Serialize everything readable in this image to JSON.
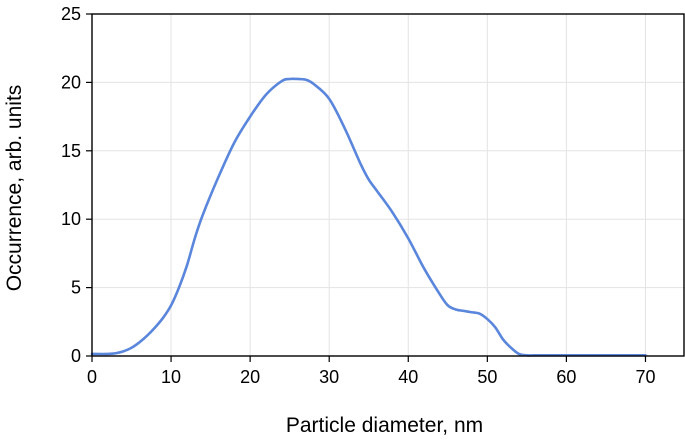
{
  "chart_data": {
    "type": "line",
    "title": "",
    "xlabel": "Particle diameter, nm",
    "ylabel": "Occurrence, arb. units",
    "xlim": [
      0,
      75
    ],
    "ylim": [
      0,
      25
    ],
    "xticks": [
      0,
      10,
      20,
      30,
      40,
      50,
      60,
      70
    ],
    "yticks": [
      0,
      5,
      10,
      15,
      20,
      25
    ],
    "grid": true,
    "legend": "none",
    "series": [
      {
        "color": "#5a86dc",
        "x": [
          0,
          2,
          3,
          4,
          5,
          6,
          7,
          8,
          9,
          10,
          11,
          12,
          13,
          14,
          16,
          18,
          20,
          22,
          24,
          25,
          26,
          27,
          28,
          30,
          32,
          34,
          35,
          36,
          38,
          40,
          42,
          44,
          45,
          46,
          47,
          48,
          49,
          50,
          51,
          52,
          53,
          54,
          55,
          56,
          58,
          60,
          65,
          70
        ],
        "y": [
          0.15,
          0.15,
          0.2,
          0.35,
          0.6,
          1.0,
          1.5,
          2.1,
          2.8,
          3.7,
          5.0,
          6.6,
          8.6,
          10.3,
          13.1,
          15.6,
          17.5,
          19.1,
          20.1,
          20.25,
          20.25,
          20.2,
          19.9,
          18.8,
          16.6,
          14.0,
          12.9,
          12.1,
          10.5,
          8.6,
          6.4,
          4.5,
          3.7,
          3.4,
          3.3,
          3.2,
          3.1,
          2.7,
          2.1,
          1.2,
          0.6,
          0.15,
          0.05,
          0.05,
          0.05,
          0.05,
          0.05,
          0.05
        ]
      }
    ]
  }
}
